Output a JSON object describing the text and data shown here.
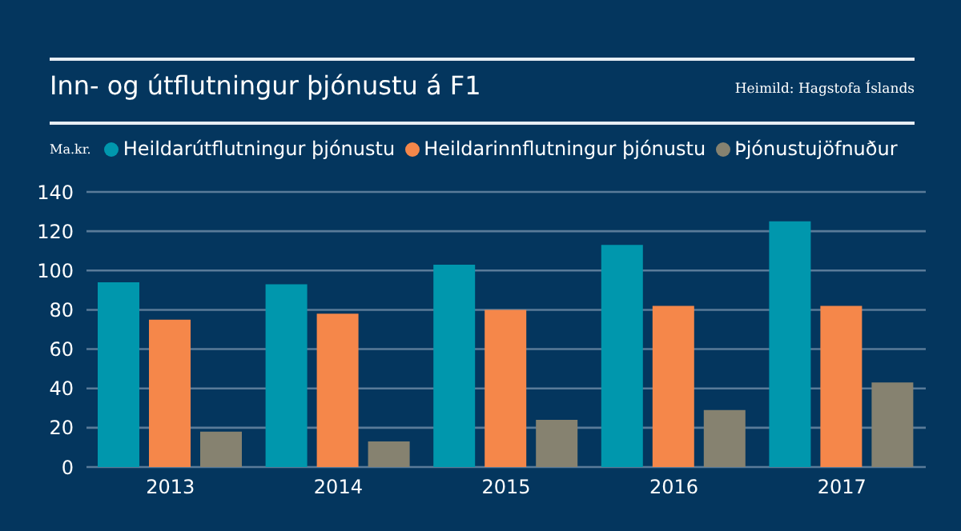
{
  "chart_data": {
    "type": "bar",
    "title": "Inn- og útflutningur þjónustu á F1",
    "ylabel": "Ma.kr.",
    "annotations": [
      "Heimild: Hagstofa Íslands"
    ],
    "categories": [
      "2013",
      "2014",
      "2015",
      "2016",
      "2017"
    ],
    "series": [
      {
        "name": "Heildarútflutningur þjónustu",
        "color": "#0097ad",
        "values": [
          94,
          93,
          103,
          113,
          125
        ]
      },
      {
        "name": "Heildarinnflutningur þjónustu",
        "color": "#f5874a",
        "values": [
          75,
          78,
          80,
          82,
          82
        ]
      },
      {
        "name": "Þjónustujöfnuður",
        "color": "#868270",
        "values": [
          18,
          13,
          24,
          29,
          43
        ]
      }
    ],
    "ylim": [
      0,
      140
    ],
    "yticks": [
      0,
      20,
      40,
      60,
      80,
      100,
      120,
      140
    ],
    "grid": "y",
    "legend": "top left"
  }
}
